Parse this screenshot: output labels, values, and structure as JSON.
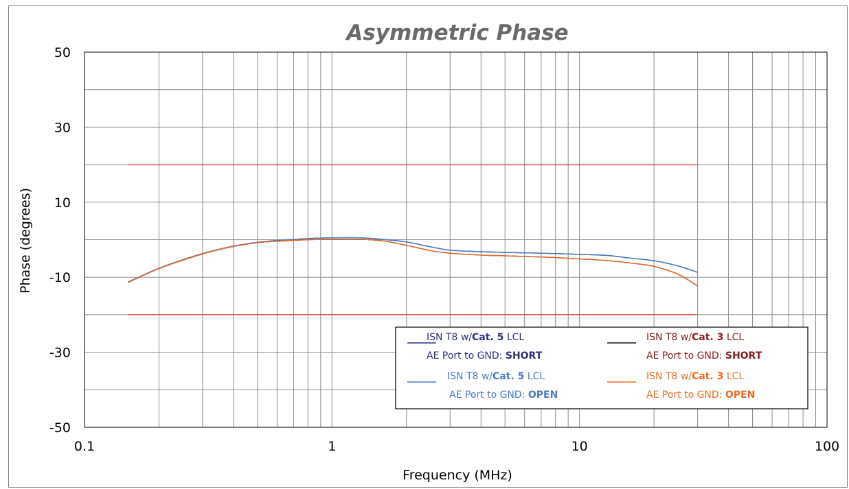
{
  "chart_data": {
    "type": "line",
    "title": "Asymmetric Phase",
    "xlabel": "Frequency (MHz)",
    "ylabel": "Phase (degrees)",
    "xscale": "log",
    "xlim": [
      0.1,
      100
    ],
    "ylim": [
      -50,
      50
    ],
    "x_ticks": [
      {
        "value": 0.1,
        "label": "0.1"
      },
      {
        "value": 1,
        "label": "1"
      },
      {
        "value": 10,
        "label": "10"
      },
      {
        "value": 100,
        "label": "100"
      }
    ],
    "y_ticks": [
      {
        "value": 50,
        "label": "50"
      },
      {
        "value": 30,
        "label": "30"
      },
      {
        "value": 10,
        "label": "10"
      },
      {
        "value": -10,
        "label": "-10"
      },
      {
        "value": -30,
        "label": "-30"
      },
      {
        "value": -50,
        "label": "-50"
      }
    ],
    "grid": true,
    "legend_position": "bottom-right",
    "limit_lines": [
      {
        "y": 20,
        "x_range": [
          0.15,
          30
        ],
        "color": "#e03030"
      },
      {
        "y": -20,
        "x_range": [
          0.15,
          30
        ],
        "color": "#e03030"
      }
    ],
    "series": [
      {
        "legend_lines": [
          [
            {
              "text": "ISN T8 w/",
              "bold": false
            },
            {
              "text": "Cat. 5",
              "bold": true
            },
            {
              "text": "  LCL",
              "bold": false
            }
          ],
          [
            {
              "text": "AE Port to GND: ",
              "bold": false
            },
            {
              "text": "SHORT",
              "bold": true
            }
          ]
        ],
        "color": "#2b2f7a",
        "text_color": "#2b2f7a",
        "x": [
          0.15,
          0.2,
          0.3,
          0.4,
          0.5,
          0.6,
          0.8,
          1.0,
          1.3,
          1.6,
          2.0,
          2.5,
          3,
          4,
          5,
          7,
          10,
          13,
          16,
          20,
          25,
          30
        ],
        "y": [
          -11.3,
          -7.6,
          -3.7,
          -1.7,
          -0.7,
          -0.2,
          0.3,
          0.5,
          0.5,
          0.1,
          -0.6,
          -1.9,
          -2.8,
          -3.2,
          -3.4,
          -3.6,
          -3.9,
          -4.2,
          -4.9,
          -5.6,
          -7.0,
          -8.7
        ]
      },
      {
        "legend_lines": [
          [
            {
              "text": "ISN T8 w/",
              "bold": false
            },
            {
              "text": "Cat. 3",
              "bold": true
            },
            {
              "text": "  LCL",
              "bold": false
            }
          ],
          [
            {
              "text": "AE Port to GND: ",
              "bold": false
            },
            {
              "text": "SHORT",
              "bold": true
            }
          ]
        ],
        "color": "#111111",
        "text_color": "#8b1a1a",
        "x": [
          0.15,
          0.2,
          0.3,
          0.4,
          0.5,
          0.6,
          0.8,
          1.0,
          1.3,
          1.6,
          2.0,
          2.5,
          3,
          4,
          5,
          7,
          10,
          13,
          16,
          20,
          25,
          30
        ],
        "y": [
          -11.4,
          -7.7,
          -3.8,
          -1.8,
          -0.8,
          -0.4,
          0.0,
          0.1,
          0.1,
          -0.3,
          -1.5,
          -2.9,
          -3.6,
          -4.1,
          -4.3,
          -4.6,
          -5.1,
          -5.6,
          -6.2,
          -7.1,
          -9.2,
          -12.3
        ]
      },
      {
        "legend_lines": [
          [
            {
              "text": "ISN T8 w/",
              "bold": false
            },
            {
              "text": "Cat. 5",
              "bold": true
            },
            {
              "text": "  LCL",
              "bold": false
            }
          ],
          [
            {
              "text": "AE Port to GND: ",
              "bold": false
            },
            {
              "text": "OPEN",
              "bold": true
            }
          ]
        ],
        "color": "#4a78c4",
        "text_color": "#4a78c4",
        "x": [
          0.15,
          0.2,
          0.3,
          0.4,
          0.5,
          0.6,
          0.8,
          1.0,
          1.3,
          1.6,
          2.0,
          2.5,
          3,
          4,
          5,
          7,
          10,
          13,
          16,
          20,
          25,
          30
        ],
        "y": [
          -11.3,
          -7.6,
          -3.7,
          -1.7,
          -0.7,
          -0.2,
          0.3,
          0.5,
          0.5,
          0.1,
          -0.6,
          -1.9,
          -2.8,
          -3.2,
          -3.4,
          -3.6,
          -3.9,
          -4.2,
          -4.9,
          -5.6,
          -7.0,
          -8.7
        ]
      },
      {
        "legend_lines": [
          [
            {
              "text": "ISN T8 w/",
              "bold": false
            },
            {
              "text": "Cat. 3",
              "bold": true
            },
            {
              "text": "  LCL",
              "bold": false
            }
          ],
          [
            {
              "text": "AE Port to GND: ",
              "bold": false
            },
            {
              "text": "OPEN",
              "bold": true
            }
          ]
        ],
        "color": "#ef6a20",
        "text_color": "#ef6a20",
        "x": [
          0.15,
          0.2,
          0.3,
          0.4,
          0.5,
          0.6,
          0.8,
          1.0,
          1.3,
          1.6,
          2.0,
          2.5,
          3,
          4,
          5,
          7,
          10,
          13,
          16,
          20,
          25,
          30
        ],
        "y": [
          -11.4,
          -7.7,
          -3.8,
          -1.8,
          -0.8,
          -0.4,
          0.0,
          0.1,
          0.1,
          -0.3,
          -1.5,
          -2.9,
          -3.6,
          -4.1,
          -4.3,
          -4.6,
          -5.1,
          -5.6,
          -6.2,
          -7.1,
          -9.2,
          -12.3
        ]
      }
    ],
    "colors": {
      "grid": "#8c8c8c",
      "plot_border": "#000000",
      "title": "#6a6a6a"
    }
  }
}
